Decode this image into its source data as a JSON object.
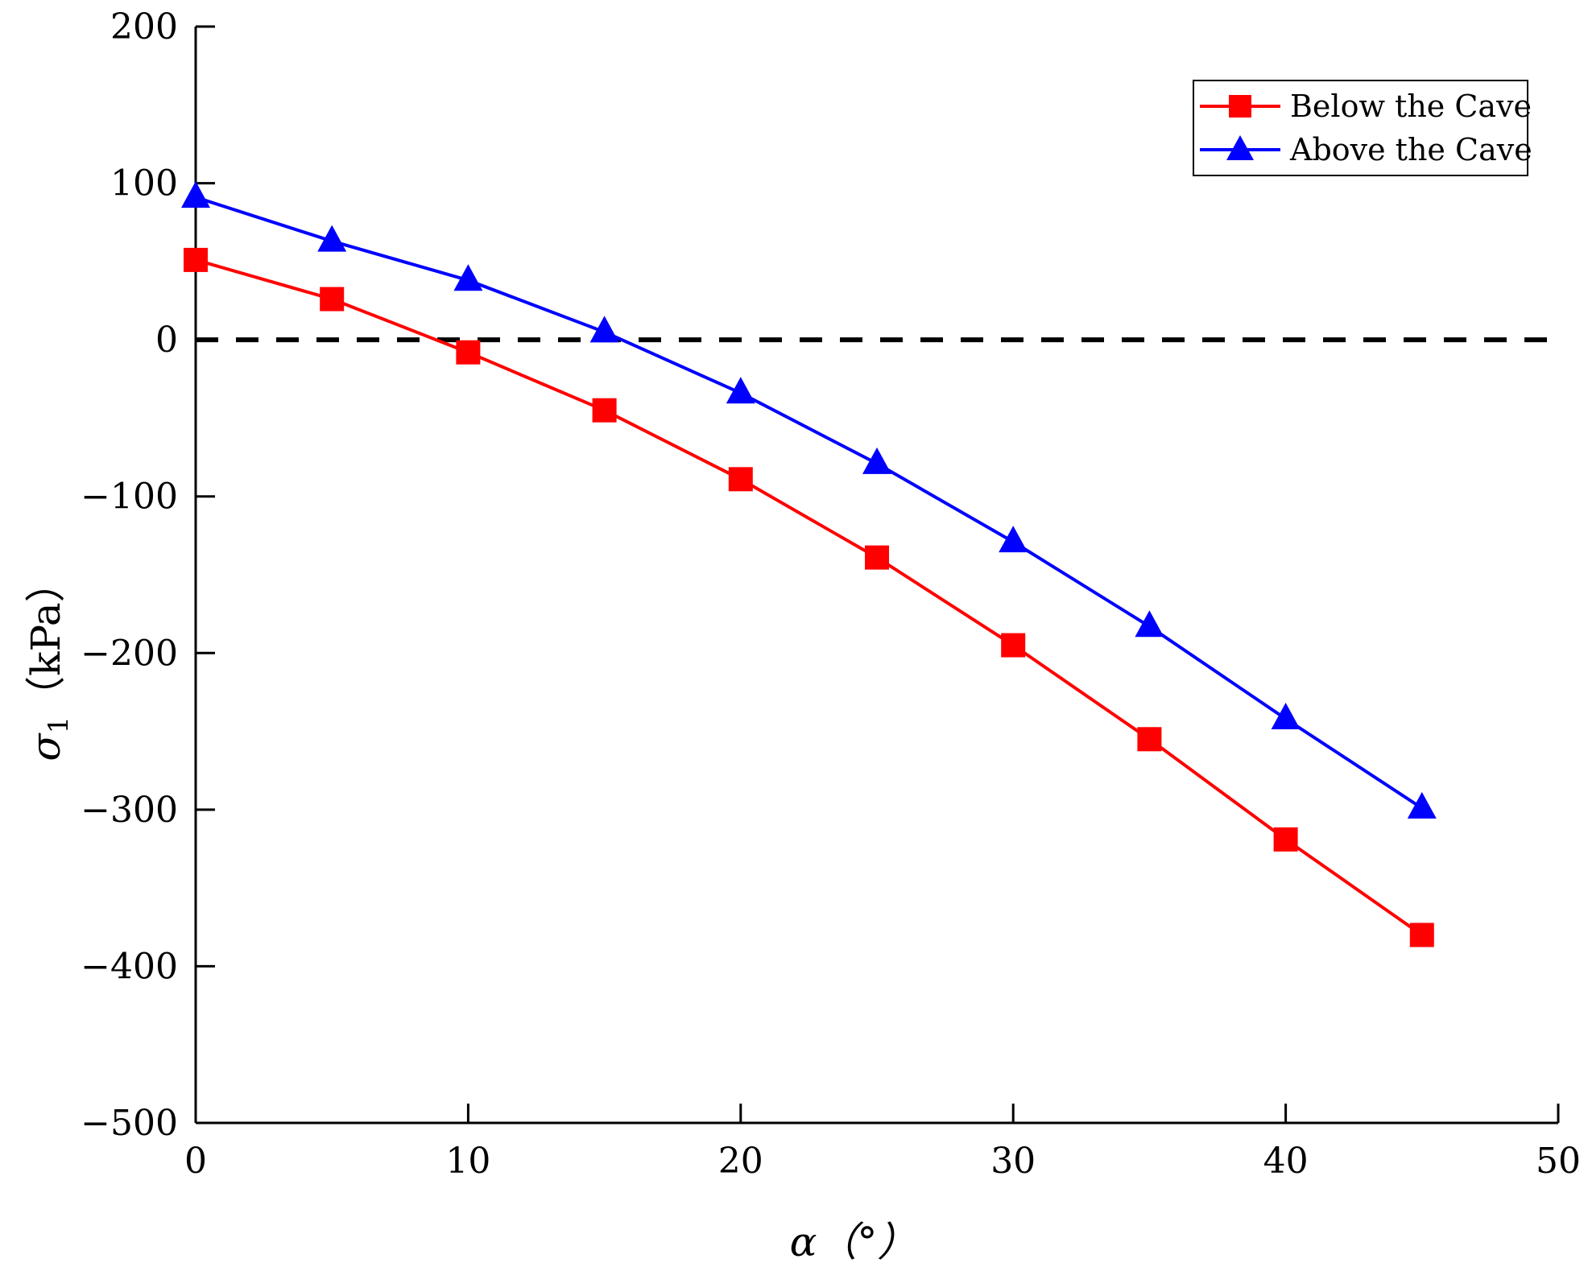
{
  "chart_data": {
    "type": "line",
    "title": "",
    "xlabel": "α（°）",
    "ylabel_symbol": "σ",
    "ylabel_subscript": "1",
    "ylabel_unit": "（kPa）",
    "xlim": [
      0,
      50
    ],
    "ylim": [
      -500,
      200
    ],
    "xticks": [
      0,
      10,
      20,
      30,
      40,
      50
    ],
    "yticks": [
      -500,
      -400,
      -300,
      -200,
      -100,
      0,
      100,
      200
    ],
    "ytick_labels": [
      "−500",
      "−400",
      "−300",
      "−200",
      "−100",
      "0",
      "100",
      "200"
    ],
    "xtick_labels": [
      "0",
      "10",
      "20",
      "30",
      "40",
      "50"
    ],
    "x": [
      0,
      5,
      10,
      15,
      20,
      25,
      30,
      35,
      40,
      45
    ],
    "reference_line": {
      "y": 0,
      "style": "dashed",
      "color": "#000000"
    },
    "legend_position": "top-right",
    "grid": false,
    "series": [
      {
        "name": "Below the Cave",
        "color": "#ff0000",
        "marker": "square",
        "values": [
          51,
          26,
          -8,
          -45,
          -89,
          -139,
          -195,
          -255,
          -319,
          -380
        ]
      },
      {
        "name": "Above the Cave",
        "color": "#0000ff",
        "marker": "triangle",
        "values": [
          91,
          63,
          38,
          5,
          -34,
          -79,
          -129,
          -183,
          -242,
          -299
        ]
      }
    ]
  }
}
